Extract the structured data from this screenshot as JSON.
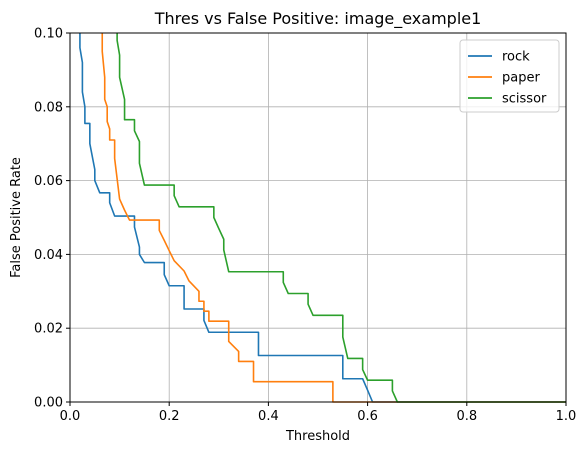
{
  "chart_data": {
    "type": "line",
    "title": "Thres vs False Positive: image_example1",
    "xlabel": "Threshold",
    "ylabel": "False Positive Rate",
    "xlim": [
      0.0,
      1.0
    ],
    "ylim": [
      0.0,
      0.1
    ],
    "xticks": [
      {
        "value": 0.0,
        "label": "0.0"
      },
      {
        "value": 0.2,
        "label": "0.2"
      },
      {
        "value": 0.4,
        "label": "0.4"
      },
      {
        "value": 0.6,
        "label": "0.6"
      },
      {
        "value": 0.8,
        "label": "0.8"
      },
      {
        "value": 1.0,
        "label": "1.0"
      }
    ],
    "yticks": [
      {
        "value": 0.0,
        "label": "0.00"
      },
      {
        "value": 0.02,
        "label": "0.02"
      },
      {
        "value": 0.04,
        "label": "0.04"
      },
      {
        "value": 0.06,
        "label": "0.06"
      },
      {
        "value": 0.08,
        "label": "0.08"
      },
      {
        "value": 0.1,
        "label": "0.10"
      }
    ],
    "grid": true,
    "legend_position": "top-right",
    "series": [
      {
        "name": "rock",
        "color": "#1f77b4",
        "x": [
          0.02,
          0.02,
          0.025,
          0.025,
          0.03,
          0.03,
          0.04,
          0.04,
          0.05,
          0.05,
          0.06,
          0.06,
          0.08,
          0.08,
          0.09,
          0.09,
          0.13,
          0.13,
          0.14,
          0.14,
          0.15,
          0.15,
          0.19,
          0.19,
          0.2,
          0.2,
          0.23,
          0.23,
          0.27,
          0.27,
          0.28,
          0.28,
          0.38,
          0.38,
          0.55,
          0.55,
          0.59,
          0.59,
          0.6,
          0.61,
          0.61,
          0.7,
          1.0
        ],
        "y": [
          0.1,
          0.096,
          0.092,
          0.084,
          0.08,
          0.0755,
          0.0755,
          0.07,
          0.063,
          0.06,
          0.0567,
          0.0567,
          0.0567,
          0.054,
          0.0504,
          0.0504,
          0.0504,
          0.0474,
          0.042,
          0.04,
          0.0378,
          0.0378,
          0.0378,
          0.0345,
          0.0315,
          0.0315,
          0.0315,
          0.0252,
          0.0252,
          0.0221,
          0.0189,
          0.0189,
          0.0189,
          0.0126,
          0.0126,
          0.0063,
          0.0063,
          0.0063,
          0.0032,
          0.0,
          0.0,
          0.0,
          0.0
        ]
      },
      {
        "name": "paper",
        "color": "#ff7f0e",
        "x": [
          0.065,
          0.065,
          0.07,
          0.07,
          0.075,
          0.075,
          0.08,
          0.08,
          0.09,
          0.09,
          0.1,
          0.1,
          0.11,
          0.12,
          0.12,
          0.18,
          0.18,
          0.19,
          0.19,
          0.2,
          0.2,
          0.21,
          0.21,
          0.23,
          0.23,
          0.24,
          0.24,
          0.26,
          0.26,
          0.27,
          0.27,
          0.28,
          0.28,
          0.29,
          0.29,
          0.32,
          0.32,
          0.34,
          0.34,
          0.37,
          0.37,
          0.53,
          0.53,
          0.6,
          1.0
        ],
        "y": [
          0.1,
          0.095,
          0.088,
          0.082,
          0.08,
          0.076,
          0.074,
          0.071,
          0.071,
          0.066,
          0.055,
          0.055,
          0.052,
          0.0493,
          0.0493,
          0.0493,
          0.0465,
          0.0438,
          0.0438,
          0.041,
          0.041,
          0.0383,
          0.0383,
          0.0355,
          0.0355,
          0.0328,
          0.0328,
          0.03,
          0.0273,
          0.0273,
          0.0246,
          0.0246,
          0.0219,
          0.0219,
          0.0219,
          0.0219,
          0.0164,
          0.0137,
          0.011,
          0.011,
          0.0055,
          0.0055,
          0.0,
          0.0,
          0.0
        ]
      },
      {
        "name": "scissor",
        "color": "#2ca02c",
        "x": [
          0.095,
          0.095,
          0.1,
          0.1,
          0.11,
          0.11,
          0.13,
          0.13,
          0.14,
          0.14,
          0.15,
          0.15,
          0.21,
          0.21,
          0.22,
          0.22,
          0.29,
          0.29,
          0.3,
          0.3,
          0.31,
          0.31,
          0.32,
          0.32,
          0.43,
          0.43,
          0.44,
          0.44,
          0.48,
          0.48,
          0.49,
          0.49,
          0.55,
          0.55,
          0.56,
          0.56,
          0.59,
          0.59,
          0.6,
          0.6,
          0.65,
          0.65,
          0.66,
          0.66,
          0.7,
          1.0
        ],
        "y": [
          0.1,
          0.098,
          0.094,
          0.088,
          0.082,
          0.0765,
          0.0765,
          0.0735,
          0.0706,
          0.0647,
          0.0588,
          0.0588,
          0.0588,
          0.0559,
          0.0529,
          0.0529,
          0.0529,
          0.05,
          0.047,
          0.047,
          0.0441,
          0.0412,
          0.0353,
          0.0353,
          0.0353,
          0.0324,
          0.0294,
          0.0294,
          0.0294,
          0.0265,
          0.0235,
          0.0235,
          0.0235,
          0.0176,
          0.0118,
          0.0118,
          0.0118,
          0.0088,
          0.0059,
          0.0059,
          0.0059,
          0.003,
          0.0,
          0.0,
          0.0,
          0.0
        ]
      }
    ]
  }
}
